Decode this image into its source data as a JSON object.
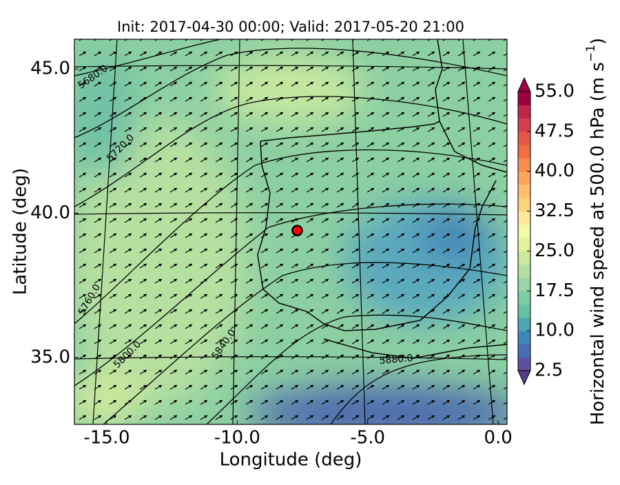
{
  "chart_data": {
    "type": "map",
    "title": "Init: 2017-04-30 00:00; Valid: 2017-05-20 21:00",
    "x_label": "Longitude (deg)",
    "y_label": "Latitude (deg)",
    "xlim": [
      -16.24,
      0.34
    ],
    "ylim": [
      32.68,
      46.03
    ],
    "xticks": [
      {
        "value": -15,
        "label": "-15.0"
      },
      {
        "value": -10,
        "label": "-10.0"
      },
      {
        "value": -5,
        "label": "-5.0"
      },
      {
        "value": 0,
        "label": "0.0"
      }
    ],
    "yticks": [
      {
        "value": 35,
        "label": "35.0"
      },
      {
        "value": 40,
        "label": "40.0"
      },
      {
        "value": 45,
        "label": "45.0"
      }
    ],
    "contour_labels": [
      "5680.0",
      "5720.0",
      "5760.0",
      "5800.0",
      "5840.0",
      "5880.0"
    ],
    "marker": {
      "lon": -7.7,
      "lat": 39.4,
      "color": "#ff0000"
    },
    "colorbar": {
      "label": [
        "Horizontal wind speed at 500.0 hPa (m s",
        "−1",
        ")"
      ],
      "lim": [
        2.5,
        55
      ],
      "ticks": [
        2.5,
        {
          "value": 10,
          "label": "10.0"
        },
        17.5,
        {
          "value": 25,
          "label": "25.0"
        },
        32.5,
        {
          "value": 40,
          "label": "40.0"
        },
        47.5,
        {
          "value": 55,
          "label": "55.0"
        }
      ],
      "colors": [
        "#5e4fa2",
        "#4a6db0",
        "#3d87b8",
        "#4da6b1",
        "#66c2a5",
        "#7fcba4",
        "#99d5a4",
        "#b3e0a3",
        "#cbe99d",
        "#e1f39a",
        "#f2f9a8",
        "#fee89a",
        "#fed380",
        "#fdbf6f",
        "#fca55d",
        "#f88e52",
        "#f16d43",
        "#e55649",
        "#d53e4f",
        "#c0254a",
        "#9e0142"
      ],
      "under_color": "#553e8c",
      "over_color": "#9e0142"
    }
  }
}
